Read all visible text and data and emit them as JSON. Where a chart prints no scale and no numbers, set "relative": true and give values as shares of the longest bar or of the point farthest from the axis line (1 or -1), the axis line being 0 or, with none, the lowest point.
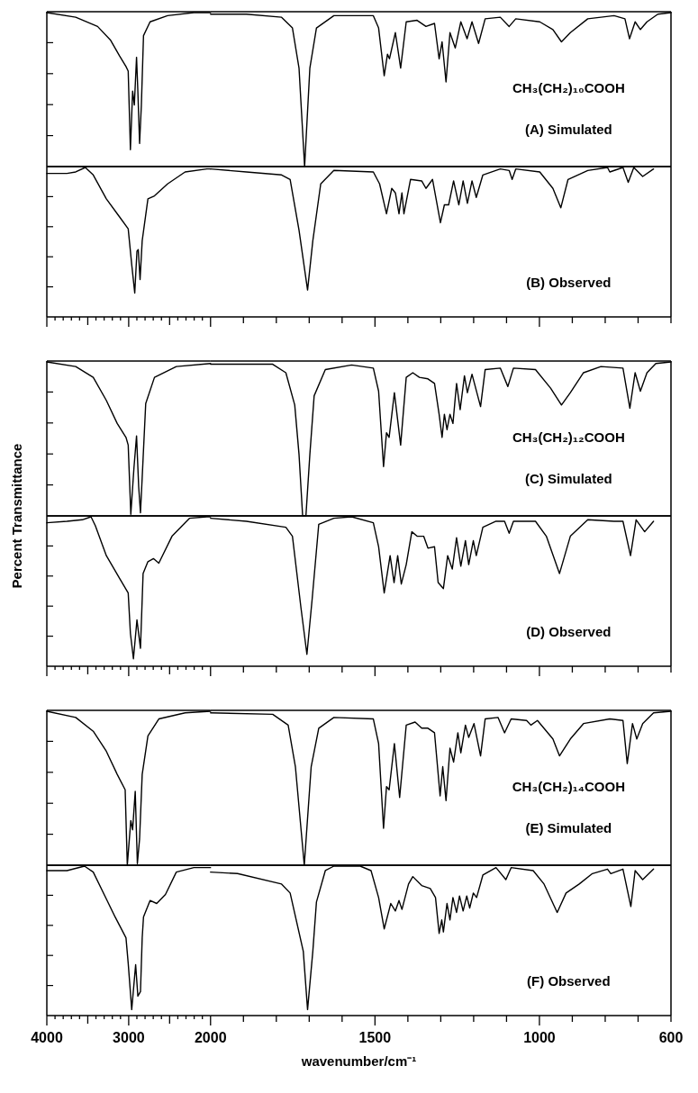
{
  "chart_data": [
    {
      "type": "line",
      "relative": true,
      "color": "#000000",
      "xlim": [
        4000,
        2000
      ],
      "tick_labels": false,
      "x": [
        4000,
        3647,
        3380,
        3220,
        3113,
        3033,
        3006,
        2979,
        2952,
        2931,
        2904,
        2888,
        2867,
        2845,
        2819,
        2739,
        2525,
        2204,
        2000
      ],
      "values": [
        1,
        0.97,
        0.91,
        0.82,
        0.72,
        0.65,
        0.62,
        0.11,
        0.49,
        0.4,
        0.71,
        0.49,
        0.15,
        0.4,
        0.85,
        0.94,
        0.98,
        1,
        1
      ]
    },
    {
      "type": "line",
      "relative": true,
      "color": "#000000",
      "xlim": [
        2000,
        600
      ],
      "tick_labels": false,
      "annotations": [
        "CH₃(CH₂)₁₀COOH",
        "(A) Simulated"
      ],
      "x": [
        2000,
        1891,
        1784,
        1751,
        1731,
        1714,
        1698,
        1678,
        1625,
        1505,
        1489,
        1472,
        1462,
        1456,
        1438,
        1422,
        1405,
        1372,
        1345,
        1319,
        1305,
        1296,
        1284,
        1272,
        1256,
        1239,
        1220,
        1205,
        1185,
        1165,
        1119,
        1092,
        1072,
        999,
        959,
        933,
        906,
        853,
        773,
        740,
        726,
        709,
        693,
        673,
        640,
        600
      ],
      "values": [
        0.99,
        0.99,
        0.97,
        0.9,
        0.64,
        0,
        0.64,
        0.9,
        0.98,
        0.98,
        0.9,
        0.59,
        0.73,
        0.7,
        0.87,
        0.64,
        0.94,
        0.95,
        0.91,
        0.93,
        0.7,
        0.81,
        0.55,
        0.87,
        0.77,
        0.94,
        0.83,
        0.94,
        0.8,
        0.96,
        0.97,
        0.91,
        0.96,
        0.94,
        0.89,
        0.81,
        0.87,
        0.96,
        0.98,
        0.96,
        0.83,
        0.94,
        0.89,
        0.94,
        0.99,
        1
      ]
    },
    {
      "type": "line",
      "relative": true,
      "color": "#000000",
      "xlim": [
        4000,
        2000
      ],
      "tick_labels": false,
      "xticks": [
        4000,
        3900,
        3800,
        3700,
        3600,
        3500,
        3400,
        3300,
        3200,
        3100,
        3000,
        2900,
        2800,
        2700,
        2600,
        2500,
        2400,
        2300,
        2200,
        2100,
        2000
      ],
      "x": [
        4000,
        3754,
        3647,
        3530,
        3433,
        3273,
        3113,
        3006,
        2963,
        2926,
        2899,
        2883,
        2861,
        2835,
        2765,
        2685,
        2525,
        2311,
        2044,
        2000
      ],
      "values": [
        0.96,
        0.96,
        0.97,
        1,
        0.95,
        0.79,
        0.67,
        0.59,
        0.35,
        0.16,
        0.44,
        0.45,
        0.25,
        0.51,
        0.79,
        0.81,
        0.89,
        0.97,
        0.99,
        0.99
      ]
    },
    {
      "type": "line",
      "relative": true,
      "color": "#000000",
      "xlim": [
        2000,
        600
      ],
      "tick_labels": false,
      "annotations": [
        "(B) Observed"
      ],
      "xticks": [
        1900,
        1800,
        1700,
        1600,
        1500,
        1400,
        1300,
        1200,
        1100,
        1000,
        900,
        800,
        700,
        600
      ],
      "x": [
        2000,
        1891,
        1784,
        1758,
        1731,
        1705,
        1689,
        1665,
        1625,
        1505,
        1486,
        1465,
        1449,
        1438,
        1427,
        1418,
        1412,
        1392,
        1358,
        1345,
        1325,
        1301,
        1289,
        1276,
        1261,
        1245,
        1232,
        1219,
        1205,
        1192,
        1172,
        1119,
        1092,
        1083,
        1072,
        999,
        959,
        935,
        913,
        853,
        793,
        786,
        746,
        730,
        713,
        686,
        653
      ],
      "values": [
        0.99,
        0.97,
        0.95,
        0.92,
        0.58,
        0.18,
        0.51,
        0.89,
        0.98,
        0.97,
        0.89,
        0.69,
        0.86,
        0.83,
        0.69,
        0.83,
        0.69,
        0.92,
        0.91,
        0.86,
        0.92,
        0.63,
        0.75,
        0.75,
        0.91,
        0.75,
        0.91,
        0.76,
        0.91,
        0.8,
        0.95,
        0.99,
        0.98,
        0.92,
        0.99,
        0.97,
        0.86,
        0.73,
        0.92,
        0.98,
        1,
        0.97,
        1,
        0.9,
        1,
        0.94,
        0.99
      ]
    },
    {
      "type": "line",
      "relative": true,
      "color": "#000000",
      "xlim": [
        4000,
        2000
      ],
      "tick_labels": false,
      "ylabel": "Percent Transmittance",
      "x": [
        4000,
        3647,
        3433,
        3273,
        3140,
        3033,
        3006,
        2974,
        2936,
        2904,
        2878,
        2856,
        2835,
        2792,
        2685,
        2418,
        2000
      ],
      "values": [
        1,
        0.97,
        0.9,
        0.75,
        0.6,
        0.51,
        0.46,
        0.01,
        0.31,
        0.52,
        0.19,
        0.02,
        0.25,
        0.73,
        0.9,
        0.97,
        0.99
      ]
    },
    {
      "type": "line",
      "relative": true,
      "color": "#000000",
      "xlim": [
        2000,
        600
      ],
      "tick_labels": false,
      "annotations": [
        "CH₃(CH₂)₁₂COOH",
        "(C) Simulated"
      ],
      "x": [
        2000,
        1811,
        1771,
        1744,
        1731,
        1720,
        1710,
        1698,
        1685,
        1651,
        1571,
        1505,
        1489,
        1474,
        1465,
        1457,
        1441,
        1422,
        1405,
        1385,
        1365,
        1339,
        1319,
        1305,
        1296,
        1289,
        1281,
        1272,
        1263,
        1252,
        1241,
        1228,
        1219,
        1205,
        1179,
        1165,
        1119,
        1096,
        1079,
        1012,
        966,
        933,
        906,
        866,
        813,
        746,
        725,
        709,
        693,
        673,
        646,
        600
      ],
      "values": [
        0.985,
        0.985,
        0.93,
        0.72,
        0.4,
        0,
        0,
        0.4,
        0.78,
        0.95,
        0.98,
        0.96,
        0.81,
        0.32,
        0.54,
        0.51,
        0.8,
        0.46,
        0.9,
        0.93,
        0.9,
        0.89,
        0.86,
        0.66,
        0.51,
        0.66,
        0.56,
        0.66,
        0.6,
        0.86,
        0.69,
        0.91,
        0.8,
        0.92,
        0.71,
        0.95,
        0.96,
        0.84,
        0.96,
        0.95,
        0.83,
        0.72,
        0.8,
        0.93,
        0.97,
        0.96,
        0.7,
        0.93,
        0.81,
        0.93,
        0.99,
        1
      ]
    },
    {
      "type": "line",
      "relative": true,
      "color": "#000000",
      "xlim": [
        4000,
        2000
      ],
      "tick_labels": false,
      "xticks": [
        4000,
        3900,
        3800,
        3700,
        3600,
        3500,
        3400,
        3300,
        3200,
        3100,
        3000,
        2900,
        2800,
        2700,
        2600,
        2500,
        2400,
        2300,
        2200,
        2100,
        2000
      ],
      "x": [
        4000,
        3754,
        3567,
        3460,
        3407,
        3273,
        3113,
        3006,
        2979,
        2942,
        2899,
        2856,
        2824,
        2765,
        2696,
        2632,
        2471,
        2258,
        2044,
        2000
      ],
      "values": [
        0.96,
        0.97,
        0.98,
        1,
        0.94,
        0.74,
        0.59,
        0.49,
        0.22,
        0.05,
        0.31,
        0.12,
        0.62,
        0.7,
        0.72,
        0.69,
        0.87,
        0.99,
        1,
        1
      ]
    },
    {
      "type": "line",
      "relative": true,
      "color": "#000000",
      "xlim": [
        2000,
        600
      ],
      "tick_labels": false,
      "annotations": [
        "(D) Observed"
      ],
      "xticks": [
        1900,
        1800,
        1700,
        1600,
        1500,
        1400,
        1300,
        1200,
        1100,
        1000,
        900,
        800,
        700,
        600
      ],
      "x": [
        2000,
        1891,
        1771,
        1751,
        1725,
        1707,
        1691,
        1671,
        1625,
        1571,
        1505,
        1489,
        1472,
        1454,
        1442,
        1431,
        1420,
        1405,
        1388,
        1372,
        1352,
        1339,
        1319,
        1308,
        1292,
        1279,
        1265,
        1252,
        1239,
        1225,
        1215,
        1201,
        1192,
        1172,
        1132,
        1106,
        1092,
        1079,
        1012,
        979,
        939,
        906,
        853,
        773,
        746,
        723,
        706,
        680,
        653
      ],
      "values": [
        0.99,
        0.97,
        0.93,
        0.87,
        0.39,
        0.08,
        0.45,
        0.95,
        0.99,
        1,
        0.96,
        0.8,
        0.49,
        0.74,
        0.56,
        0.74,
        0.55,
        0.68,
        0.9,
        0.87,
        0.87,
        0.79,
        0.8,
        0.56,
        0.52,
        0.74,
        0.65,
        0.86,
        0.67,
        0.84,
        0.68,
        0.84,
        0.74,
        0.93,
        0.97,
        0.97,
        0.89,
        0.97,
        0.97,
        0.87,
        0.62,
        0.87,
        0.98,
        0.97,
        0.97,
        0.74,
        0.98,
        0.9,
        0.97
      ]
    },
    {
      "type": "line",
      "relative": true,
      "color": "#000000",
      "xlim": [
        4000,
        2000
      ],
      "tick_labels": false,
      "x": [
        4000,
        3647,
        3433,
        3273,
        3140,
        3043,
        3017,
        2974,
        2952,
        2920,
        2894,
        2867,
        2835,
        2765,
        2632,
        2311,
        2000
      ],
      "values": [
        1,
        0.96,
        0.87,
        0.74,
        0.59,
        0.49,
        0,
        0.29,
        0.23,
        0.48,
        0.01,
        0.17,
        0.59,
        0.84,
        0.95,
        0.99,
        1
      ]
    },
    {
      "type": "line",
      "relative": true,
      "color": "#000000",
      "xlim": [
        2000,
        600
      ],
      "tick_labels": false,
      "annotations": [
        "CH₃(CH₂)₁₄COOH",
        "(E) Simulated"
      ],
      "x": [
        2000,
        1811,
        1764,
        1742,
        1715,
        1694,
        1671,
        1625,
        1505,
        1489,
        1474,
        1465,
        1457,
        1441,
        1425,
        1405,
        1378,
        1358,
        1339,
        1319,
        1302,
        1294,
        1284,
        1272,
        1261,
        1248,
        1239,
        1225,
        1215,
        1199,
        1179,
        1165,
        1126,
        1106,
        1086,
        1039,
        1026,
        1006,
        959,
        939,
        906,
        866,
        786,
        746,
        733,
        717,
        704,
        686,
        653,
        600
      ],
      "values": [
        0.99,
        0.98,
        0.91,
        0.64,
        0,
        0.64,
        0.89,
        0.96,
        0.95,
        0.79,
        0.24,
        0.51,
        0.49,
        0.79,
        0.44,
        0.91,
        0.93,
        0.89,
        0.89,
        0.86,
        0.45,
        0.64,
        0.42,
        0.76,
        0.67,
        0.86,
        0.73,
        0.91,
        0.83,
        0.92,
        0.71,
        0.95,
        0.96,
        0.86,
        0.95,
        0.94,
        0.91,
        0.94,
        0.82,
        0.71,
        0.82,
        0.92,
        0.95,
        0.94,
        0.66,
        0.92,
        0.82,
        0.92,
        0.99,
        1
      ]
    },
    {
      "type": "line",
      "relative": true,
      "color": "#000000",
      "xlim": [
        4000,
        2000
      ],
      "tick_labels": "x",
      "xticks": [
        4000,
        {
          "value": 3900,
          "label": null
        },
        {
          "value": 3800,
          "label": null
        },
        {
          "value": 3700,
          "label": null
        },
        {
          "value": 3600,
          "label": null
        },
        {
          "value": 3500,
          "label": null
        },
        {
          "value": 3400,
          "label": null
        },
        {
          "value": 3300,
          "label": null
        },
        {
          "value": 3200,
          "label": null
        },
        {
          "value": 3100,
          "label": null
        },
        3000,
        {
          "value": 2900,
          "label": null
        },
        {
          "value": 2800,
          "label": null
        },
        {
          "value": 2700,
          "label": null
        },
        {
          "value": 2600,
          "label": null
        },
        {
          "value": 2500,
          "label": null
        },
        {
          "value": 2400,
          "label": null
        },
        {
          "value": 2300,
          "label": null
        },
        {
          "value": 2200,
          "label": null
        },
        {
          "value": 2100,
          "label": null
        },
        2000
      ],
      "x": [
        4000,
        3754,
        3540,
        3433,
        3273,
        3166,
        3033,
        3006,
        2963,
        2915,
        2888,
        2856,
        2835,
        2819,
        2739,
        2658,
        2551,
        2418,
        2204,
        2000
      ],
      "values": [
        0.97,
        0.97,
        1,
        0.96,
        0.78,
        0.66,
        0.52,
        0.35,
        0.04,
        0.34,
        0.13,
        0.16,
        0.52,
        0.66,
        0.77,
        0.75,
        0.81,
        0.96,
        0.99,
        0.99
      ]
    },
    {
      "type": "line",
      "relative": true,
      "color": "#000000",
      "xlim": [
        2000,
        600
      ],
      "tick_labels": "x",
      "xlabel": "wavenumber/cm⁻¹",
      "annotations": [
        "(F) Observed"
      ],
      "xticks": [
        {
          "value": 1900,
          "label": null
        },
        {
          "value": 1800,
          "label": null
        },
        {
          "value": 1700,
          "label": null
        },
        {
          "value": 1600,
          "label": null
        },
        1500,
        {
          "value": 1400,
          "label": null
        },
        {
          "value": 1300,
          "label": null
        },
        {
          "value": 1200,
          "label": null
        },
        {
          "value": 1100,
          "label": null
        },
        1000,
        {
          "value": 900,
          "label": null
        },
        {
          "value": 800,
          "label": null
        },
        {
          "value": 700,
          "label": null
        },
        600
      ],
      "x": [
        2000,
        1918,
        1784,
        1758,
        1718,
        1705,
        1689,
        1678,
        1651,
        1625,
        1545,
        1512,
        1489,
        1472,
        1452,
        1438,
        1427,
        1418,
        1398,
        1385,
        1358,
        1332,
        1316,
        1305,
        1297,
        1292,
        1281,
        1272,
        1263,
        1252,
        1243,
        1232,
        1221,
        1212,
        1201,
        1191,
        1172,
        1132,
        1102,
        1086,
        1019,
        986,
        946,
        919,
        879,
        839,
        793,
        783,
        746,
        722,
        709,
        686,
        653
      ],
      "values": [
        0.96,
        0.95,
        0.88,
        0.82,
        0.43,
        0.04,
        0.43,
        0.76,
        0.97,
        1,
        1,
        0.97,
        0.79,
        0.58,
        0.75,
        0.7,
        0.77,
        0.71,
        0.88,
        0.93,
        0.87,
        0.85,
        0.79,
        0.55,
        0.64,
        0.56,
        0.75,
        0.64,
        0.79,
        0.69,
        0.8,
        0.7,
        0.8,
        0.72,
        0.82,
        0.79,
        0.94,
        0.99,
        0.91,
        0.99,
        0.97,
        0.88,
        0.69,
        0.82,
        0.88,
        0.95,
        0.98,
        0.95,
        0.98,
        0.73,
        0.97,
        0.91,
        0.98
      ]
    }
  ]
}
